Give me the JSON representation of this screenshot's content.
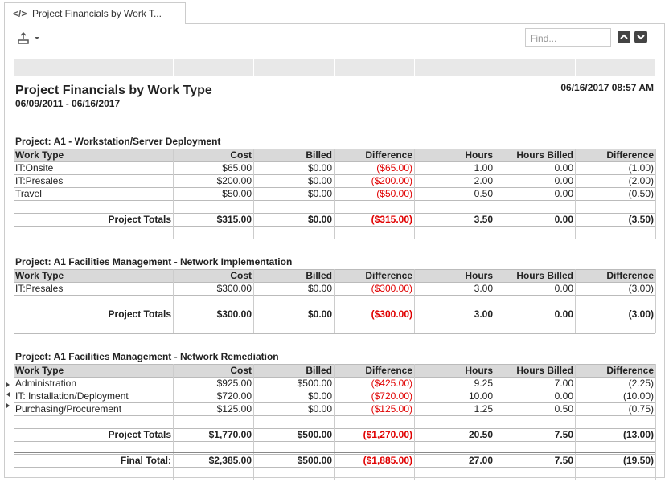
{
  "tab": {
    "title": "Project Financials by Work T..."
  },
  "toolbar": {
    "find_placeholder": "Find..."
  },
  "report": {
    "title": "Project Financials by Work Type",
    "date_range": "06/09/2011 - 06/16/2017",
    "printed_at": "06/16/2017 08:57 AM",
    "columns": [
      "Work Type",
      "Cost",
      "Billed",
      "Difference",
      "Hours",
      "Hours Billed",
      "Difference"
    ],
    "projects": [
      {
        "title": "Project: A1 - Workstation/Server Deployment",
        "rows": [
          [
            "IT:Onsite",
            "$65.00",
            "$0.00",
            "($65.00)",
            "1.00",
            "0.00",
            "(1.00)"
          ],
          [
            "IT:Presales",
            "$200.00",
            "$0.00",
            "($200.00)",
            "2.00",
            "0.00",
            "(2.00)"
          ],
          [
            "Travel",
            "$50.00",
            "$0.00",
            "($50.00)",
            "0.50",
            "0.00",
            "(0.50)"
          ]
        ],
        "totals_label": "Project Totals",
        "totals": [
          "$315.00",
          "$0.00",
          "($315.00)",
          "3.50",
          "0.00",
          "(3.50)"
        ]
      },
      {
        "title": "Project: A1 Facilities Management - Network Implementation",
        "rows": [
          [
            "IT:Presales",
            "$300.00",
            "$0.00",
            "($300.00)",
            "3.00",
            "0.00",
            "(3.00)"
          ]
        ],
        "totals_label": "Project Totals",
        "totals": [
          "$300.00",
          "$0.00",
          "($300.00)",
          "3.00",
          "0.00",
          "(3.00)"
        ]
      },
      {
        "title": "Project: A1 Facilities Management - Network Remediation",
        "rows": [
          [
            "Administration",
            "$925.00",
            "$500.00",
            "($425.00)",
            "9.25",
            "7.00",
            "(2.25)"
          ],
          [
            "IT: Installation/Deployment",
            "$720.00",
            "$0.00",
            "($720.00)",
            "10.00",
            "0.00",
            "(10.00)"
          ],
          [
            "Purchasing/Procurement",
            "$125.00",
            "$0.00",
            "($125.00)",
            "1.25",
            "0.50",
            "(0.75)"
          ]
        ],
        "totals_label": "Project Totals",
        "totals": [
          "$1,770.00",
          "$500.00",
          "($1,270.00)",
          "20.50",
          "7.50",
          "(13.00)"
        ]
      }
    ],
    "final_total": {
      "label": "Final Total:",
      "values": [
        "$2,385.00",
        "$500.00",
        "($1,885.00)",
        "27.00",
        "7.50",
        "(19.50)"
      ]
    }
  }
}
